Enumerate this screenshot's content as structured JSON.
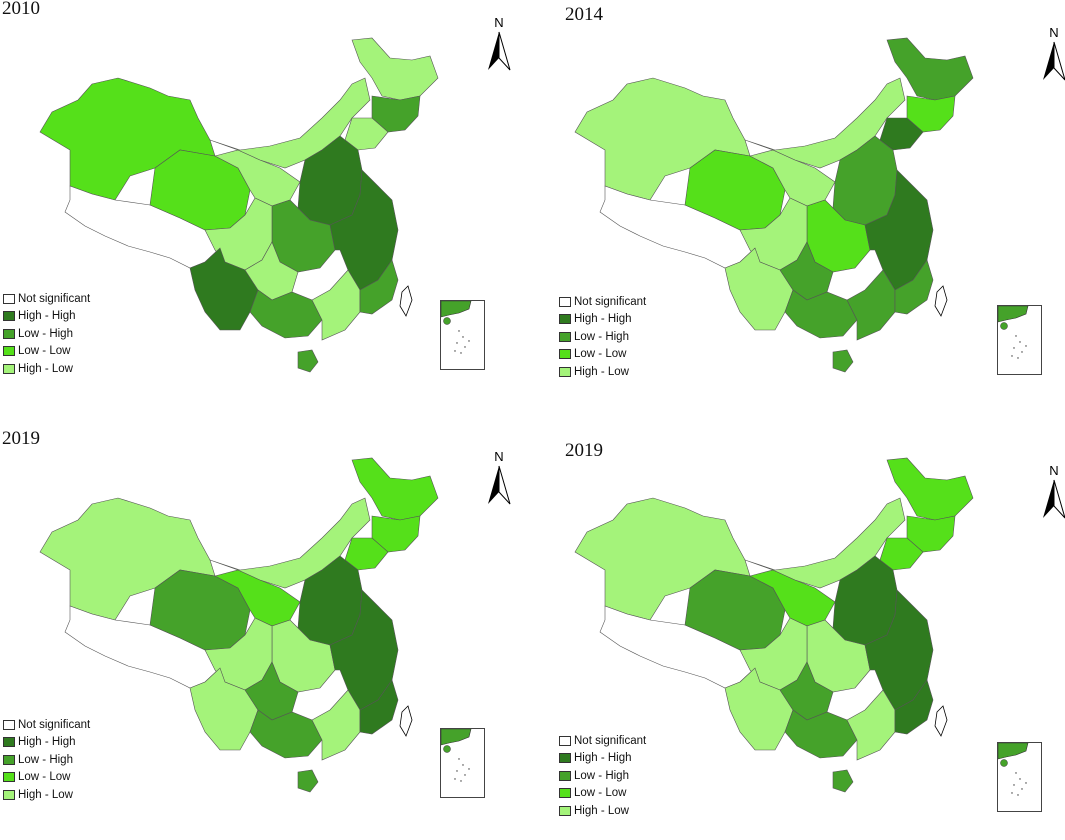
{
  "colors": {
    "not_significant": "#ffffff",
    "high_high": "#2f7a1f",
    "low_high": "#45a22a",
    "low_low": "#55e01a",
    "high_low": "#a4f37a"
  },
  "legend": [
    {
      "key": "not_significant",
      "label": "Not significant"
    },
    {
      "key": "high_high",
      "label": "High - High"
    },
    {
      "key": "low_high",
      "label": "Low - High"
    },
    {
      "key": "low_low",
      "label": "Low - Low"
    },
    {
      "key": "high_low",
      "label": "High - Low"
    }
  ],
  "north_label": "N",
  "panels": [
    {
      "year": "2010",
      "regions": {
        "xinjiang": "low_low",
        "tibet": "not_significant",
        "qinghai": "low_low",
        "gansu": "high_low",
        "inner_mongolia": "high_low",
        "heilongjiang": "high_low",
        "jilin": "low_high",
        "liaoning": "high_low",
        "north_china": "high_high",
        "central": "low_high",
        "east_coast": "high_high",
        "sichuan": "high_low",
        "yunnan": "high_high",
        "guizhou": "high_low",
        "guangxi": "low_high",
        "guangdong": "high_low",
        "fujian": "low_high",
        "hainan": "low_high"
      }
    },
    {
      "year": "2014",
      "regions": {
        "xinjiang": "high_low",
        "tibet": "not_significant",
        "qinghai": "low_low",
        "gansu": "high_low",
        "inner_mongolia": "high_low",
        "heilongjiang": "low_high",
        "jilin": "low_low",
        "liaoning": "high_high",
        "north_china": "low_high",
        "central": "low_low",
        "east_coast": "high_high",
        "sichuan": "high_low",
        "yunnan": "high_low",
        "guizhou": "low_high",
        "guangxi": "low_high",
        "guangdong": "low_high",
        "fujian": "low_high",
        "hainan": "low_high"
      }
    },
    {
      "year": "2019",
      "regions": {
        "xinjiang": "high_low",
        "tibet": "not_significant",
        "qinghai": "low_high",
        "gansu": "low_low",
        "inner_mongolia": "high_low",
        "heilongjiang": "low_low",
        "jilin": "low_low",
        "liaoning": "low_low",
        "north_china": "high_high",
        "central": "high_low",
        "east_coast": "high_high",
        "sichuan": "high_low",
        "yunnan": "high_low",
        "guizhou": "low_high",
        "guangxi": "low_high",
        "guangdong": "high_low",
        "fujian": "high_high",
        "hainan": "low_high"
      }
    },
    {
      "year": "2019",
      "regions": {
        "xinjiang": "high_low",
        "tibet": "not_significant",
        "qinghai": "low_high",
        "gansu": "low_low",
        "inner_mongolia": "high_low",
        "heilongjiang": "low_low",
        "jilin": "low_low",
        "liaoning": "low_low",
        "north_china": "high_high",
        "central": "high_low",
        "east_coast": "high_high",
        "sichuan": "high_low",
        "yunnan": "high_low",
        "guizhou": "low_high",
        "guangxi": "low_high",
        "guangdong": "high_low",
        "fujian": "high_high",
        "hainan": "low_high"
      }
    }
  ]
}
